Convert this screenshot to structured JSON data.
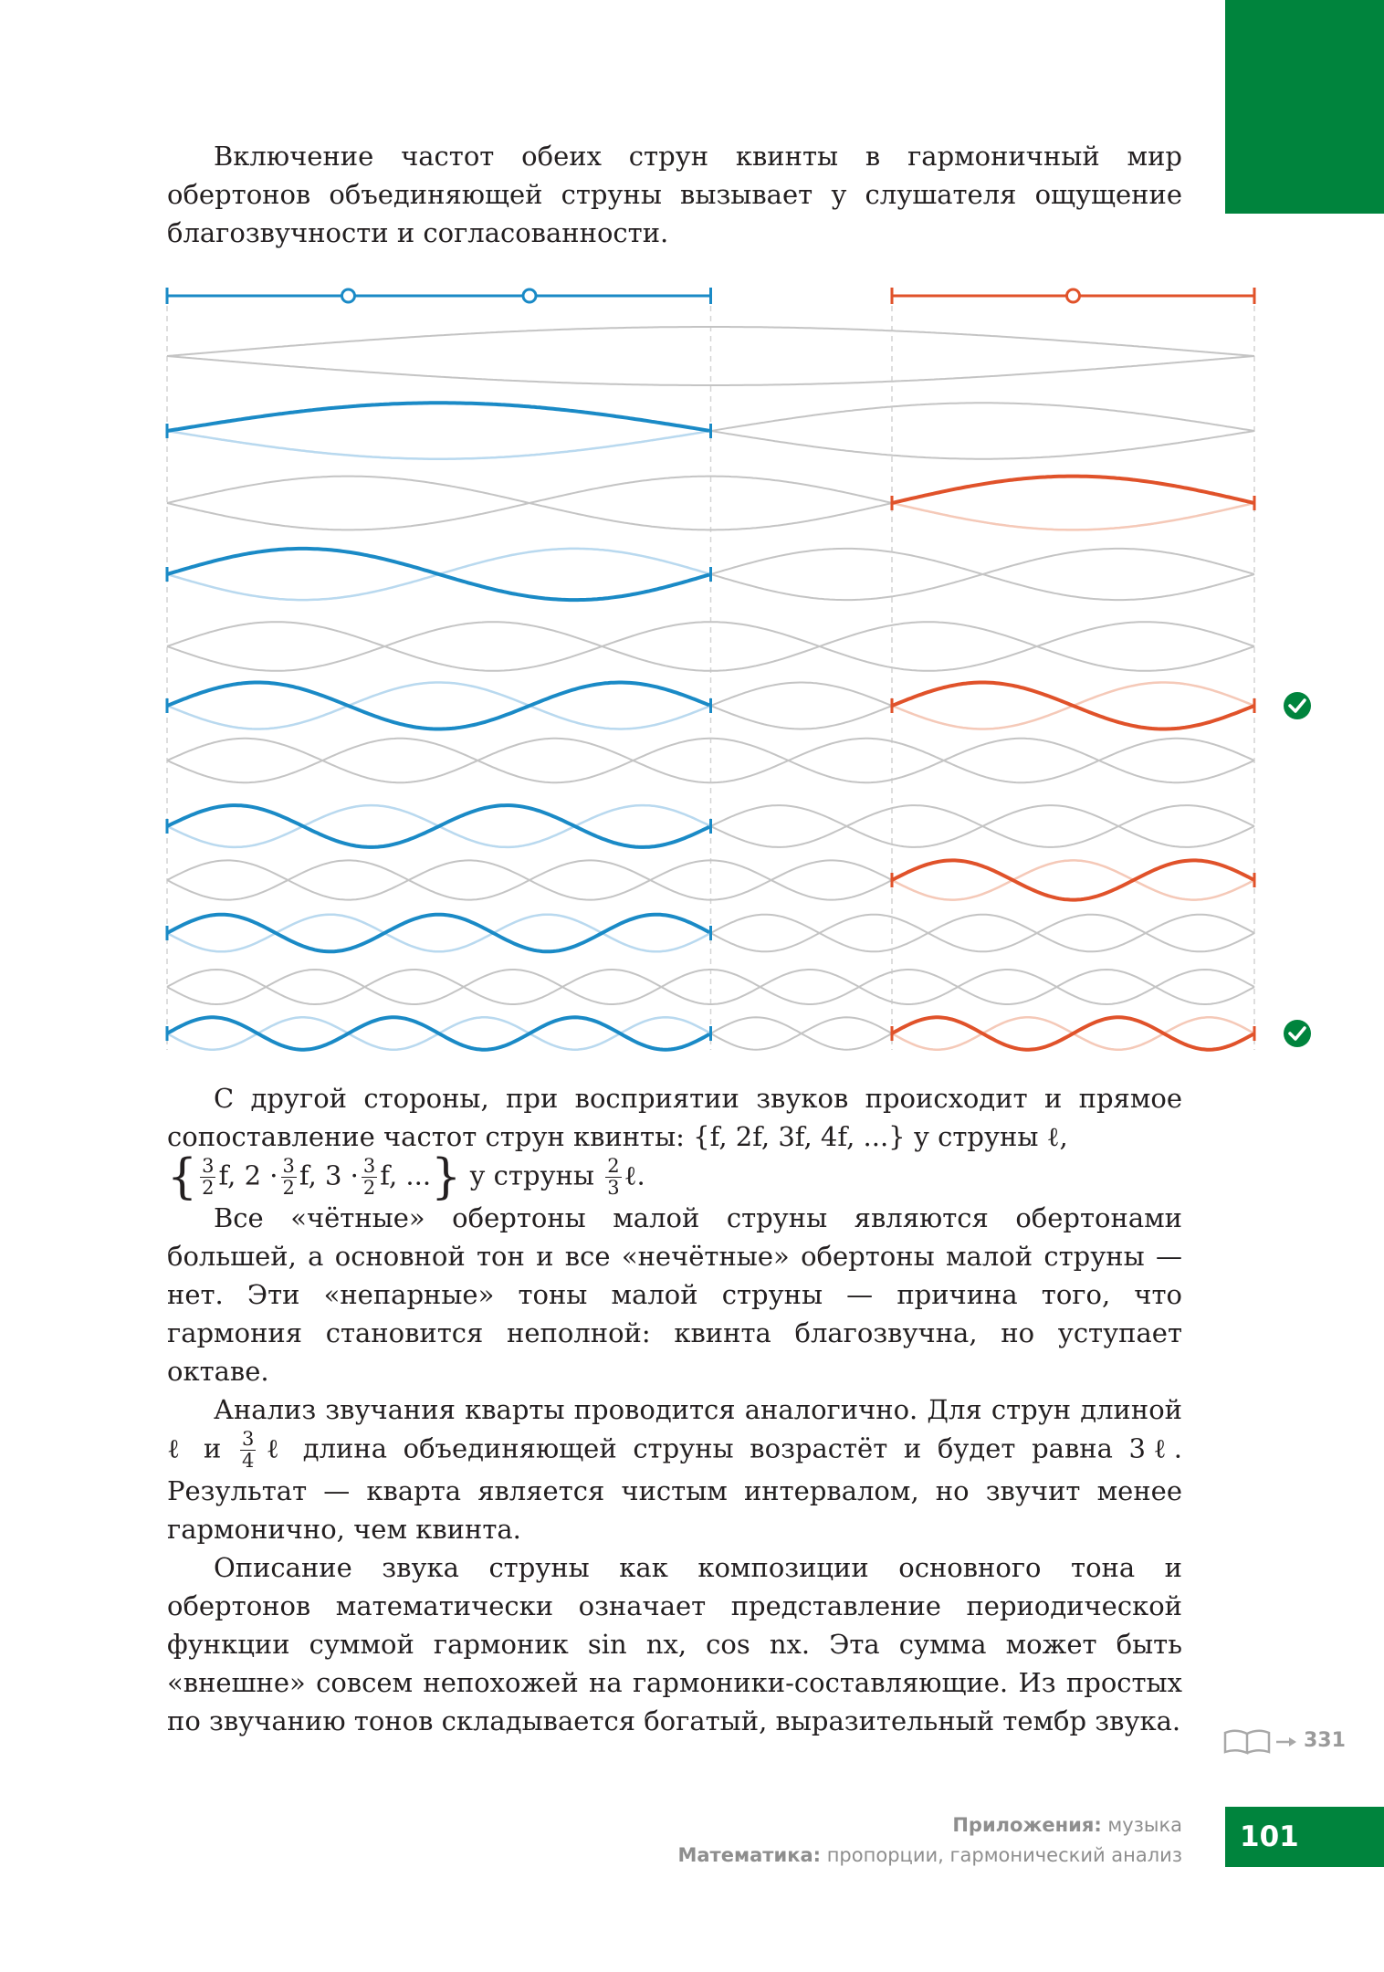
{
  "paragraph_1": "Включение частот обеих струн квинты в гармоничный мир обертонов объединяющей струны вызывает у слушателя ощущение благозвучности и согласованности.",
  "paragraph_2": {
    "before": "С другой стороны, при восприятии звуков происходит и прямое сопоставление частот струн квинты:",
    "set_1": "{f, 2f, 3f, 4f, ...}",
    "middle": "у струны ℓ,",
    "set_2_open": "{",
    "set_2_terms": [
      {
        "num": "3",
        "den": "2",
        "suffix": "f,"
      },
      {
        "prefix": "2 ·",
        "num": "3",
        "den": "2",
        "suffix": "f,"
      },
      {
        "prefix": "3 ·",
        "num": "3",
        "den": "2",
        "suffix": "f, ..."
      }
    ],
    "set_2_close": "}",
    "tail": "у струны",
    "tail_num": "2",
    "tail_den": "3",
    "tail_end": "ℓ."
  },
  "paragraph_3": "Все «чётные» обертоны малой струны являются обертонами большей, а основной тон и все «нечётные» обертоны малой струны — нет. Эти «непарные» тоны малой струны — причина того, что гармония становится неполной: квинта благозвучна, но уступает октаве.",
  "paragraph_4": {
    "before": "Анализ звучания кварты проводится аналогично. Для струн длиной ℓ и",
    "num": "3",
    "den": "4",
    "after": "ℓ длина объединяющей струны возрастёт и будет равна 3ℓ. Результат — кварта является чистым интервалом, но звучит менее гармонично, чем квинта."
  },
  "paragraph_5": "Описание звука струны как композиции основного тона и обертонов математически означает представление периодической функции суммой гармоник sin nx, cos nx. Эта сумма может быть «внешне» совсем непохожей на гармоники-составляющие. Из простых по звучанию тонов складывается богатый, выразительный тембр звука.",
  "sidenote": "331",
  "footer": {
    "line_1_label": "Приложения:",
    "line_1_text": "музыка",
    "line_2_label": "Математика:",
    "line_2_text": "пропорции, гармонический анализ"
  },
  "page_number": "101"
}
